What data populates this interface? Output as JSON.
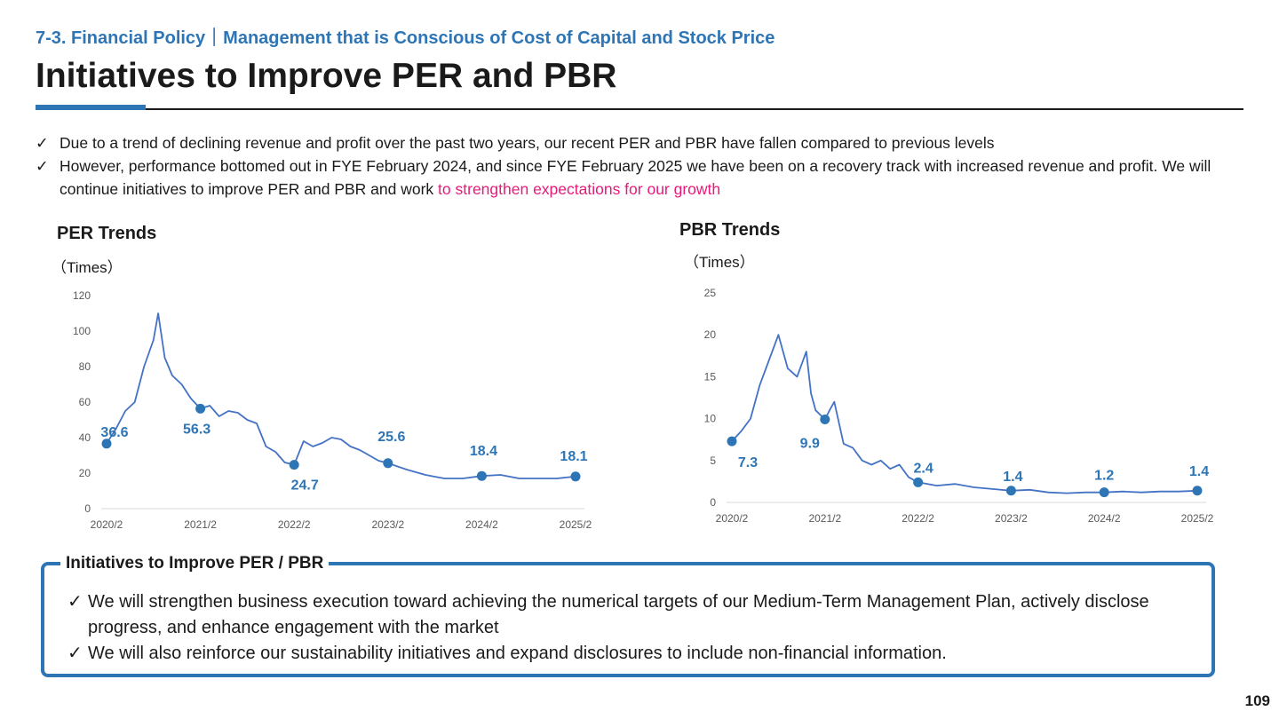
{
  "header": {
    "section_label": "7-3. Financial Policy｜Management that is Conscious of Cost of Capital and Stock Price",
    "title": "Initiatives to Improve PER and PBR"
  },
  "bullets": {
    "check_symbol": "✓",
    "b1": "Due to a trend of declining revenue and profit over the past two years, our recent PER and PBR have fallen compared to previous levels",
    "b2_main": "However, performance bottomed out in FYE February 2024, and since FYE February 2025 we have been on a recovery track with increased revenue and profit. We will continue initiatives to improve PER and PBR and work ",
    "b2_highlight": "to strengthen expectations for our growth"
  },
  "colors": {
    "accent": "#2e75b6",
    "line": "#4472c4",
    "marker": "#2e75b6",
    "highlight": "#e8197b"
  },
  "chart_data": [
    {
      "type": "line",
      "title": "PER Trends",
      "unit_label": "（Times）",
      "x_ticks": [
        "2020/2",
        "2021/2",
        "2022/2",
        "2023/2",
        "2024/2",
        "2025/2"
      ],
      "y_ticks": [
        "0",
        "20",
        "40",
        "60",
        "80",
        "100",
        "120"
      ],
      "ylim": [
        0,
        120
      ],
      "grid": false,
      "series": [
        {
          "x": [
            2020.0,
            2020.1,
            2020.2,
            2020.3,
            2020.4,
            2020.5,
            2020.55,
            2020.62,
            2020.7,
            2020.8,
            2020.9,
            2021.0,
            2021.1,
            2021.2,
            2021.3,
            2021.4,
            2021.5,
            2021.6,
            2021.7,
            2021.8,
            2021.9,
            2022.0,
            2022.1,
            2022.2,
            2022.3,
            2022.4,
            2022.5,
            2022.6,
            2022.7,
            2022.8,
            2022.9,
            2023.0,
            2023.2,
            2023.4,
            2023.6,
            2023.8,
            2024.0,
            2024.2,
            2024.4,
            2024.6,
            2024.8,
            2025.0
          ],
          "y": [
            36.6,
            45,
            55,
            60,
            80,
            95,
            110,
            85,
            75,
            70,
            62,
            56.3,
            58,
            52,
            55,
            54,
            50,
            48,
            35,
            32,
            26,
            24.7,
            38,
            35,
            37,
            40,
            39,
            35,
            33,
            30,
            27,
            25.6,
            22,
            19,
            17,
            17,
            18.4,
            19,
            17,
            17,
            17,
            18.1
          ]
        }
      ],
      "markers": [
        {
          "x": 2020.0,
          "y": 36.6,
          "label": "36.6"
        },
        {
          "x": 2021.0,
          "y": 56.3,
          "label": "56.3"
        },
        {
          "x": 2022.0,
          "y": 24.7,
          "label": "24.7"
        },
        {
          "x": 2023.0,
          "y": 25.6,
          "label": "25.6"
        },
        {
          "x": 2024.0,
          "y": 18.4,
          "label": "18.4"
        },
        {
          "x": 2025.0,
          "y": 18.1,
          "label": "18.1"
        }
      ]
    },
    {
      "type": "line",
      "title": "PBR Trends",
      "unit_label": "（Times）",
      "x_ticks": [
        "2020/2",
        "2021/2",
        "2022/2",
        "2023/2",
        "2024/2",
        "2025/2"
      ],
      "y_ticks": [
        "0",
        "5",
        "10",
        "15",
        "20",
        "25"
      ],
      "ylim": [
        0,
        25
      ],
      "grid": false,
      "series": [
        {
          "x": [
            2020.0,
            2020.1,
            2020.2,
            2020.3,
            2020.4,
            2020.5,
            2020.6,
            2020.7,
            2020.8,
            2020.85,
            2020.9,
            2021.0,
            2021.05,
            2021.1,
            2021.2,
            2021.3,
            2021.4,
            2021.5,
            2021.6,
            2021.7,
            2021.8,
            2021.9,
            2022.0,
            2022.2,
            2022.4,
            2022.6,
            2022.8,
            2023.0,
            2023.2,
            2023.4,
            2023.6,
            2023.8,
            2024.0,
            2024.2,
            2024.4,
            2024.6,
            2024.8,
            2025.0
          ],
          "y": [
            7.3,
            8.5,
            10,
            14,
            17,
            20,
            16,
            15,
            18,
            13,
            11,
            9.9,
            11,
            12,
            7,
            6.5,
            5,
            4.5,
            5,
            4,
            4.5,
            3,
            2.4,
            2,
            2.2,
            1.8,
            1.6,
            1.4,
            1.5,
            1.2,
            1.1,
            1.2,
            1.2,
            1.3,
            1.2,
            1.3,
            1.3,
            1.4
          ]
        }
      ],
      "markers": [
        {
          "x": 2020.0,
          "y": 7.3,
          "label": "7.3"
        },
        {
          "x": 2021.0,
          "y": 9.9,
          "label": "9.9"
        },
        {
          "x": 2022.0,
          "y": 2.4,
          "label": "2.4"
        },
        {
          "x": 2023.0,
          "y": 1.4,
          "label": "1.4"
        },
        {
          "x": 2024.0,
          "y": 1.2,
          "label": "1.2"
        },
        {
          "x": 2025.0,
          "y": 1.4,
          "label": "1.4"
        }
      ]
    }
  ],
  "initiatives": {
    "title": "Initiatives to Improve PER / PBR",
    "items": [
      "We will strengthen business execution toward achieving the numerical targets of our Medium-Term Management Plan, actively disclose progress, and enhance engagement with the market",
      "We will also reinforce our sustainability initiatives and expand disclosures to include non-financial information."
    ]
  },
  "page_number": "109"
}
